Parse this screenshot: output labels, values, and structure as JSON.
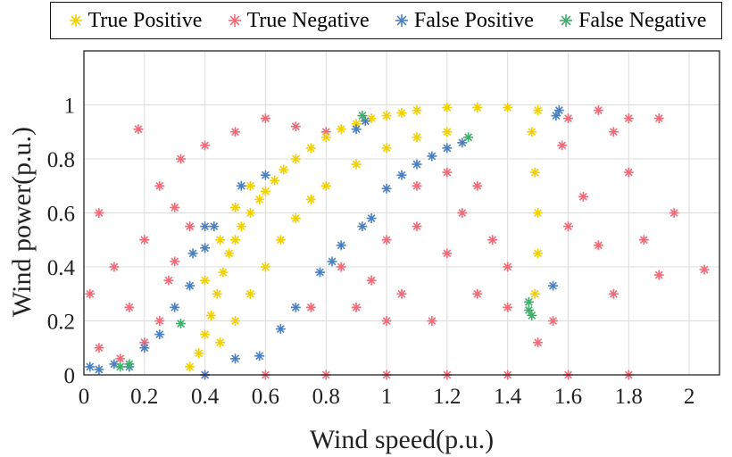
{
  "chart_data": {
    "type": "scatter",
    "xlabel": "Wind speed(p.u.)",
    "ylabel": "Wind power(p.u.)",
    "xlim": [
      0,
      2.1
    ],
    "ylim": [
      0,
      1.2
    ],
    "xticks": [
      "0",
      "0.2",
      "0.4",
      "0.6",
      "0.8",
      "1",
      "1.2",
      "1.4",
      "1.6",
      "1.8",
      "2"
    ],
    "yticks": [
      "0",
      "0.2",
      "0.4",
      "0.6",
      "0.8",
      "1"
    ],
    "grid": true,
    "legend_position": "top",
    "marker": "asterisk",
    "series": [
      {
        "name": "True Positive",
        "color": "#f2d000",
        "points": [
          [
            0.35,
            0.03
          ],
          [
            0.38,
            0.08
          ],
          [
            0.4,
            0.15
          ],
          [
            0.42,
            0.22
          ],
          [
            0.44,
            0.3
          ],
          [
            0.46,
            0.38
          ],
          [
            0.48,
            0.45
          ],
          [
            0.5,
            0.5
          ],
          [
            0.52,
            0.55
          ],
          [
            0.55,
            0.6
          ],
          [
            0.58,
            0.65
          ],
          [
            0.6,
            0.68
          ],
          [
            0.63,
            0.72
          ],
          [
            0.66,
            0.76
          ],
          [
            0.7,
            0.8
          ],
          [
            0.75,
            0.84
          ],
          [
            0.8,
            0.88
          ],
          [
            0.85,
            0.91
          ],
          [
            0.9,
            0.93
          ],
          [
            0.95,
            0.95
          ],
          [
            1.0,
            0.96
          ],
          [
            1.05,
            0.97
          ],
          [
            1.1,
            0.98
          ],
          [
            1.2,
            0.99
          ],
          [
            1.3,
            0.99
          ],
          [
            1.4,
            0.99
          ],
          [
            1.5,
            0.98
          ],
          [
            1.48,
            0.9
          ],
          [
            1.49,
            0.75
          ],
          [
            1.5,
            0.6
          ],
          [
            1.5,
            0.45
          ],
          [
            1.49,
            0.3
          ],
          [
            0.45,
            0.12
          ],
          [
            0.5,
            0.2
          ],
          [
            0.55,
            0.3
          ],
          [
            0.6,
            0.4
          ],
          [
            0.65,
            0.5
          ],
          [
            0.7,
            0.58
          ],
          [
            0.75,
            0.65
          ],
          [
            0.8,
            0.7
          ],
          [
            0.9,
            0.78
          ],
          [
            1.0,
            0.84
          ],
          [
            1.1,
            0.88
          ],
          [
            1.2,
            0.9
          ],
          [
            0.4,
            0.35
          ],
          [
            0.45,
            0.5
          ],
          [
            0.5,
            0.62
          ],
          [
            0.55,
            0.7
          ]
        ]
      },
      {
        "name": "True Negative",
        "color": "#f06a78",
        "points": [
          [
            0.02,
            0.3
          ],
          [
            0.05,
            0.6
          ],
          [
            0.1,
            0.4
          ],
          [
            0.15,
            0.25
          ],
          [
            0.2,
            0.5
          ],
          [
            0.25,
            0.7
          ],
          [
            0.3,
            0.62
          ],
          [
            0.18,
            0.91
          ],
          [
            0.28,
            0.35
          ],
          [
            0.32,
            0.8
          ],
          [
            0.4,
            0.85
          ],
          [
            0.5,
            0.9
          ],
          [
            0.6,
            0.95
          ],
          [
            0.7,
            0.92
          ],
          [
            0.8,
            0.9
          ],
          [
            0.75,
            0.25
          ],
          [
            0.85,
            0.4
          ],
          [
            0.95,
            0.35
          ],
          [
            1.0,
            0.5
          ],
          [
            1.05,
            0.3
          ],
          [
            1.1,
            0.55
          ],
          [
            1.15,
            0.2
          ],
          [
            1.2,
            0.45
          ],
          [
            1.25,
            0.6
          ],
          [
            1.3,
            0.3
          ],
          [
            1.35,
            0.5
          ],
          [
            1.4,
            0.4
          ],
          [
            1.1,
            0.7
          ],
          [
            1.2,
            0.75
          ],
          [
            1.3,
            0.7
          ],
          [
            1.6,
            0.95
          ],
          [
            1.7,
            0.98
          ],
          [
            1.75,
            0.9
          ],
          [
            1.8,
            0.95
          ],
          [
            1.9,
            0.95
          ],
          [
            1.8,
            0.75
          ],
          [
            1.85,
            0.5
          ],
          [
            1.9,
            0.37
          ],
          [
            1.95,
            0.6
          ],
          [
            2.05,
            0.39
          ],
          [
            1.75,
            0.3
          ],
          [
            1.7,
            0.48
          ],
          [
            1.55,
            0.2
          ],
          [
            1.6,
            0.55
          ],
          [
            1.65,
            0.66
          ],
          [
            1.0,
            0.2
          ],
          [
            0.9,
            0.25
          ],
          [
            0.05,
            0.1
          ],
          [
            0.12,
            0.06
          ],
          [
            0.2,
            0.12
          ],
          [
            0.25,
            0.2
          ],
          [
            0.4,
            0.0
          ],
          [
            0.6,
            0.0
          ],
          [
            0.8,
            0.0
          ],
          [
            1.0,
            0.0
          ],
          [
            1.2,
            0.0
          ],
          [
            1.4,
            0.0
          ],
          [
            1.6,
            0.0
          ],
          [
            1.8,
            0.0
          ],
          [
            0.35,
            0.55
          ],
          [
            0.3,
            0.42
          ],
          [
            1.4,
            0.25
          ],
          [
            1.5,
            0.12
          ],
          [
            1.58,
            0.85
          ]
        ]
      },
      {
        "name": "False Positive",
        "color": "#4a7fc1",
        "points": [
          [
            0.02,
            0.03
          ],
          [
            0.05,
            0.02
          ],
          [
            0.1,
            0.04
          ],
          [
            0.15,
            0.03
          ],
          [
            0.2,
            0.1
          ],
          [
            0.25,
            0.15
          ],
          [
            0.3,
            0.25
          ],
          [
            0.35,
            0.33
          ],
          [
            0.36,
            0.45
          ],
          [
            0.4,
            0.55
          ],
          [
            0.43,
            0.55
          ],
          [
            0.52,
            0.7
          ],
          [
            0.6,
            0.74
          ],
          [
            0.9,
            0.91
          ],
          [
            0.93,
            0.94
          ],
          [
            1.0,
            0.69
          ],
          [
            1.05,
            0.74
          ],
          [
            1.1,
            0.78
          ],
          [
            1.15,
            0.81
          ],
          [
            1.2,
            0.84
          ],
          [
            1.25,
            0.86
          ],
          [
            0.4,
            0.0
          ],
          [
            0.5,
            0.06
          ],
          [
            0.58,
            0.07
          ],
          [
            0.65,
            0.17
          ],
          [
            0.7,
            0.25
          ],
          [
            0.78,
            0.38
          ],
          [
            0.85,
            0.48
          ],
          [
            0.92,
            0.55
          ],
          [
            0.95,
            0.58
          ],
          [
            0.82,
            0.42
          ],
          [
            1.55,
            0.33
          ],
          [
            1.56,
            0.96
          ],
          [
            1.57,
            0.98
          ],
          [
            0.4,
            0.47
          ]
        ]
      },
      {
        "name": "False Negative",
        "color": "#3fae6a",
        "points": [
          [
            0.12,
            0.03
          ],
          [
            0.15,
            0.04
          ],
          [
            0.32,
            0.19
          ],
          [
            0.92,
            0.96
          ],
          [
            1.27,
            0.88
          ],
          [
            1.47,
            0.27
          ],
          [
            1.47,
            0.24
          ],
          [
            1.48,
            0.22
          ]
        ]
      }
    ]
  }
}
